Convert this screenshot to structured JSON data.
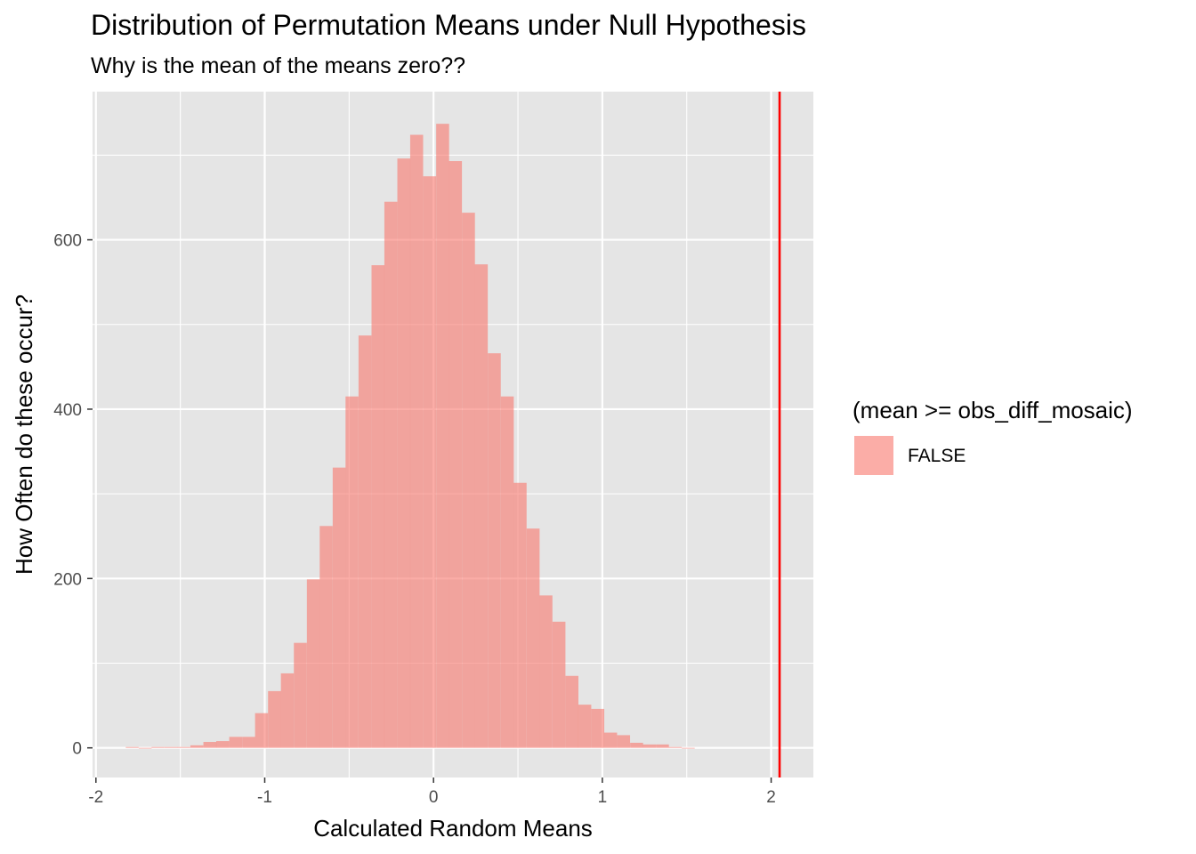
{
  "chart_data": {
    "type": "bar",
    "title": "Distribution of Permutation Means under Null Hypothesis",
    "subtitle": "Why is the mean of the means zero??",
    "xlabel": "Calculated Random Means",
    "ylabel": "How Often do these occur?",
    "xlim": [
      -2.02,
      2.25
    ],
    "ylim": [
      -35,
      775
    ],
    "x_ticks": [
      -2,
      -1,
      0,
      1,
      2
    ],
    "x_tick_labels": [
      "-2",
      "-1",
      "0",
      "1",
      "2"
    ],
    "y_ticks": [
      0,
      200,
      400,
      600
    ],
    "y_tick_labels": [
      "0",
      "200",
      "400",
      "600"
    ],
    "grid": true,
    "bin_width": 0.0766,
    "bin_centers": [
      -1.785,
      -1.708,
      -1.632,
      -1.555,
      -1.479,
      -1.402,
      -1.325,
      -1.249,
      -1.172,
      -1.095,
      -1.019,
      -0.942,
      -0.866,
      -0.789,
      -0.712,
      -0.636,
      -0.559,
      -0.483,
      -0.406,
      -0.329,
      -0.253,
      -0.176,
      -0.1,
      -0.023,
      0.054,
      0.13,
      0.207,
      0.283,
      0.36,
      0.437,
      0.513,
      0.59,
      0.666,
      0.743,
      0.82,
      0.896,
      0.973,
      1.049,
      1.126,
      1.203,
      1.279,
      1.356,
      1.432,
      1.509
    ],
    "counts": [
      1,
      0,
      1,
      1,
      1,
      3,
      7,
      8,
      13,
      13,
      41,
      67,
      88,
      124,
      199,
      262,
      331,
      415,
      487,
      570,
      645,
      696,
      724,
      675,
      737,
      693,
      632,
      571,
      466,
      415,
      313,
      259,
      180,
      149,
      85,
      51,
      46,
      18,
      15,
      6,
      4,
      4,
      1,
      0
    ],
    "series": [
      {
        "name": "FALSE",
        "color": "#F8766D",
        "opacity": 0.6
      }
    ],
    "reference_line": {
      "x": 2.05,
      "color": "#ff0000"
    },
    "legend": {
      "title": "(mean >= obs_diff_mosaic)",
      "position": "right",
      "entries": [
        "FALSE"
      ]
    },
    "colors": {
      "panel": "#e5e5e5",
      "grid": "#ffffff",
      "fill": "#f19e9c"
    }
  }
}
